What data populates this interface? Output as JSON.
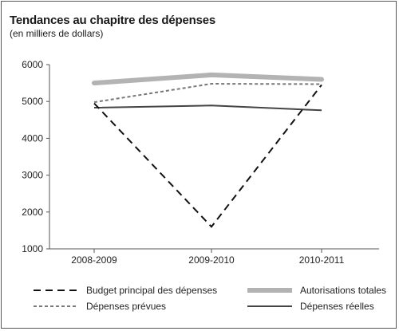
{
  "chart_data": {
    "type": "line",
    "title": "Tendances au chapitre des dépenses",
    "subtitle": "(en milliers de dollars)",
    "categories": [
      "2008-2009",
      "2009-2010",
      "2010-2011"
    ],
    "ylim": [
      1000,
      6000
    ],
    "yticks": [
      1000,
      2000,
      3000,
      4000,
      5000,
      6000
    ],
    "grid": false,
    "legend_position": "bottom",
    "series": [
      {
        "name": "Budget principal des dépenses",
        "values": [
          4950,
          1600,
          5450
        ],
        "color": "#111111",
        "style": "dashed-thick"
      },
      {
        "name": "Autorisations totales",
        "values": [
          5500,
          5720,
          5600
        ],
        "color": "#b3b3b3",
        "style": "solid-wide"
      },
      {
        "name": "Dépenses prévues",
        "values": [
          4980,
          5480,
          5470
        ],
        "color": "#777777",
        "style": "dashed-thin"
      },
      {
        "name": "Dépenses réelles",
        "values": [
          4830,
          4890,
          4760
        ],
        "color": "#444444",
        "style": "solid"
      }
    ]
  }
}
